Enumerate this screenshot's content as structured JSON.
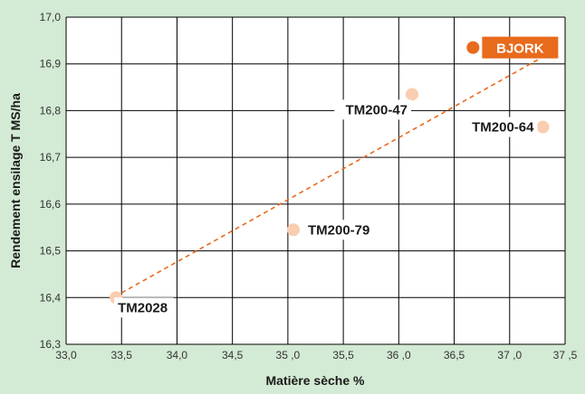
{
  "chart_data": {
    "type": "scatter",
    "xlabel": "Matière sèche %",
    "ylabel": "Rendement ensilage T MS/ha",
    "xlim": [
      33.0,
      37.5
    ],
    "ylim": [
      16.3,
      17.0
    ],
    "x_ticks": [
      {
        "value": 33.0,
        "label": "33,0"
      },
      {
        "value": 33.5,
        "label": "33,5"
      },
      {
        "value": 34.0,
        "label": "34,0"
      },
      {
        "value": 34.5,
        "label": "34,5"
      },
      {
        "value": 35.0,
        "label": "35 ,0"
      },
      {
        "value": 35.5,
        "label": "35,5"
      },
      {
        "value": 36.0,
        "label": "36 ,0"
      },
      {
        "value": 36.5,
        "label": "36,5"
      },
      {
        "value": 37.0,
        "label": "37 ,0"
      },
      {
        "value": 37.5,
        "label": "37 ,5"
      }
    ],
    "y_ticks": [
      {
        "value": 16.3,
        "label": "16,3"
      },
      {
        "value": 16.4,
        "label": "16,4"
      },
      {
        "value": 16.5,
        "label": "16,5"
      },
      {
        "value": 16.6,
        "label": "16,6"
      },
      {
        "value": 16.7,
        "label": "16,7"
      },
      {
        "value": 16.8,
        "label": "16,8"
      },
      {
        "value": 16.9,
        "label": "16,9"
      },
      {
        "value": 17.0,
        "label": "17,0"
      }
    ],
    "grid": true,
    "points": [
      {
        "label": "TM2028",
        "x": 33.45,
        "y": 16.4,
        "highlight": false,
        "label_pos": "below-right"
      },
      {
        "label": "TM200-79",
        "x": 35.05,
        "y": 16.545,
        "highlight": false,
        "label_pos": "right"
      },
      {
        "label": "TM200-47",
        "x": 36.12,
        "y": 16.835,
        "highlight": false,
        "label_pos": "below-left"
      },
      {
        "label": "TM200-64",
        "x": 37.3,
        "y": 16.765,
        "highlight": false,
        "label_pos": "left"
      },
      {
        "label": "BJORK",
        "x": 36.67,
        "y": 16.935,
        "highlight": true,
        "label_pos": "right"
      }
    ],
    "trendline": {
      "x": [
        33.5,
        37.3
      ],
      "y": [
        16.41,
        16.915
      ],
      "style": "dashed"
    },
    "colors": {
      "background": "#d3ead4",
      "plot_area": "#ffffff",
      "grid": "#000000",
      "point": "#f9cdb0",
      "highlight_point": "#e86a1c",
      "highlight_label_bg": "#e86a1c",
      "highlight_label_text": "#ffffff",
      "trendline": "#e86a1c"
    }
  }
}
